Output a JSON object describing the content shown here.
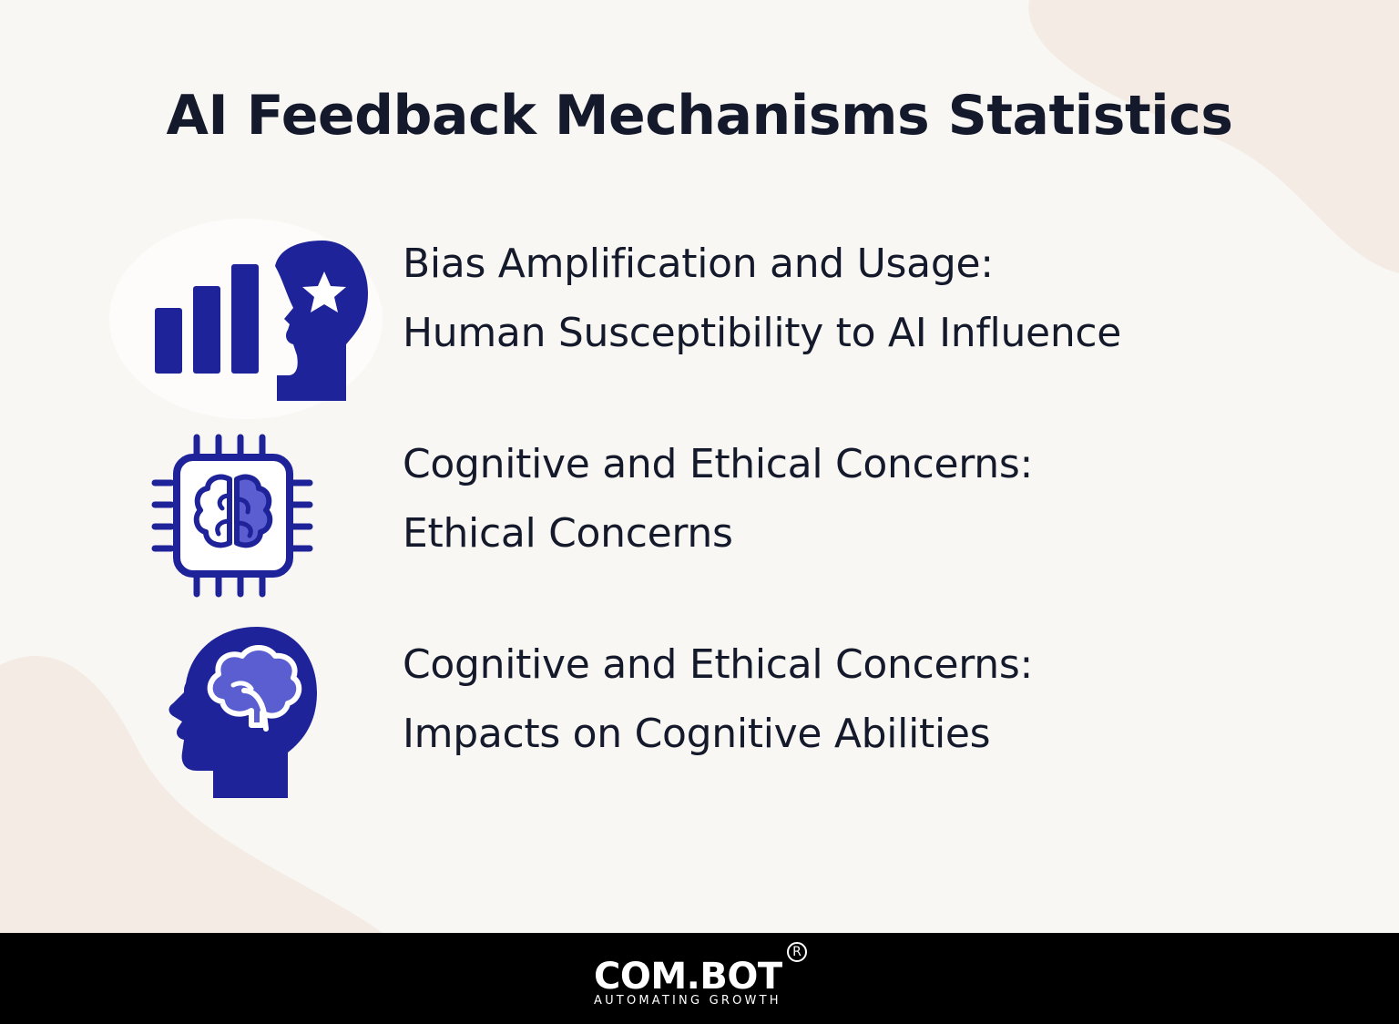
{
  "title": "AI Feedback Mechanisms Statistics",
  "colors": {
    "background": "#f9f7f3",
    "accent_dark": "#1f239a",
    "accent_light": "#5a5ed0",
    "text": "#141a2b",
    "footer": "#000000"
  },
  "items": [
    {
      "icon": "chart-head-star-icon",
      "heading": "Bias Amplification and Usage:",
      "subheading": "Human Susceptibility to AI Influence"
    },
    {
      "icon": "brain-chip-icon",
      "heading": "Cognitive and Ethical Concerns:",
      "subheading": "Ethical Concerns"
    },
    {
      "icon": "head-brain-icon",
      "heading": "Cognitive and Ethical Concerns:",
      "subheading": "Impacts on Cognitive Abilities"
    }
  ],
  "footer": {
    "logo_text": "COM.BOT",
    "registered_mark": "R",
    "tagline": "AUTOMATING GROWTH"
  }
}
